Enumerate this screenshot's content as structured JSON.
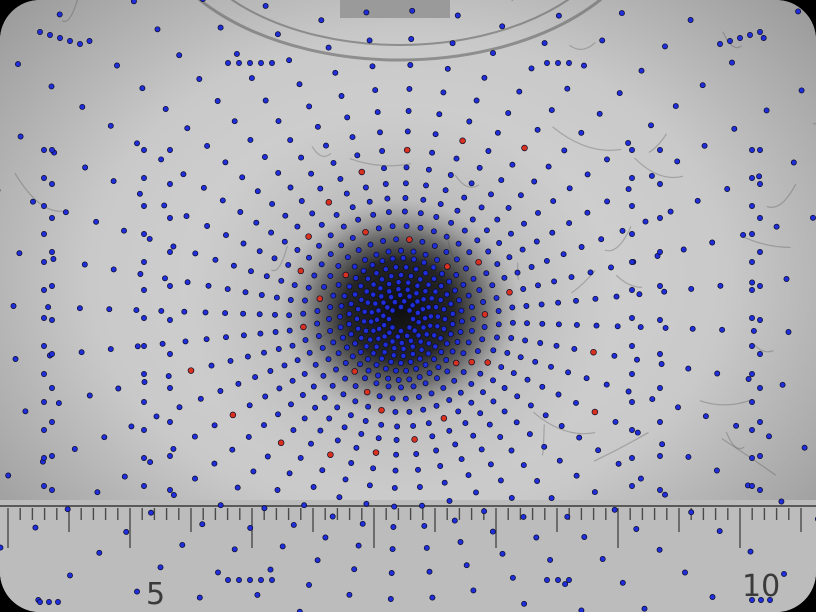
{
  "image": {
    "description_free": true,
    "ruler": {
      "labels": [
        "5",
        "10"
      ],
      "ink_color": "#4a4a4a"
    },
    "colors": {
      "background_light": "#d8d8d8",
      "background_mid": "#b4b4b4",
      "spot_dark": "#141414",
      "ruler_strip": "#bdbdbd",
      "dot_blue": "#1f2ed8",
      "dot_red": "#d8321e",
      "dot_outline": "#0a0a2a"
    },
    "overlay": {
      "marker_styles": [
        "blue-dot",
        "red-dot"
      ]
    }
  }
}
